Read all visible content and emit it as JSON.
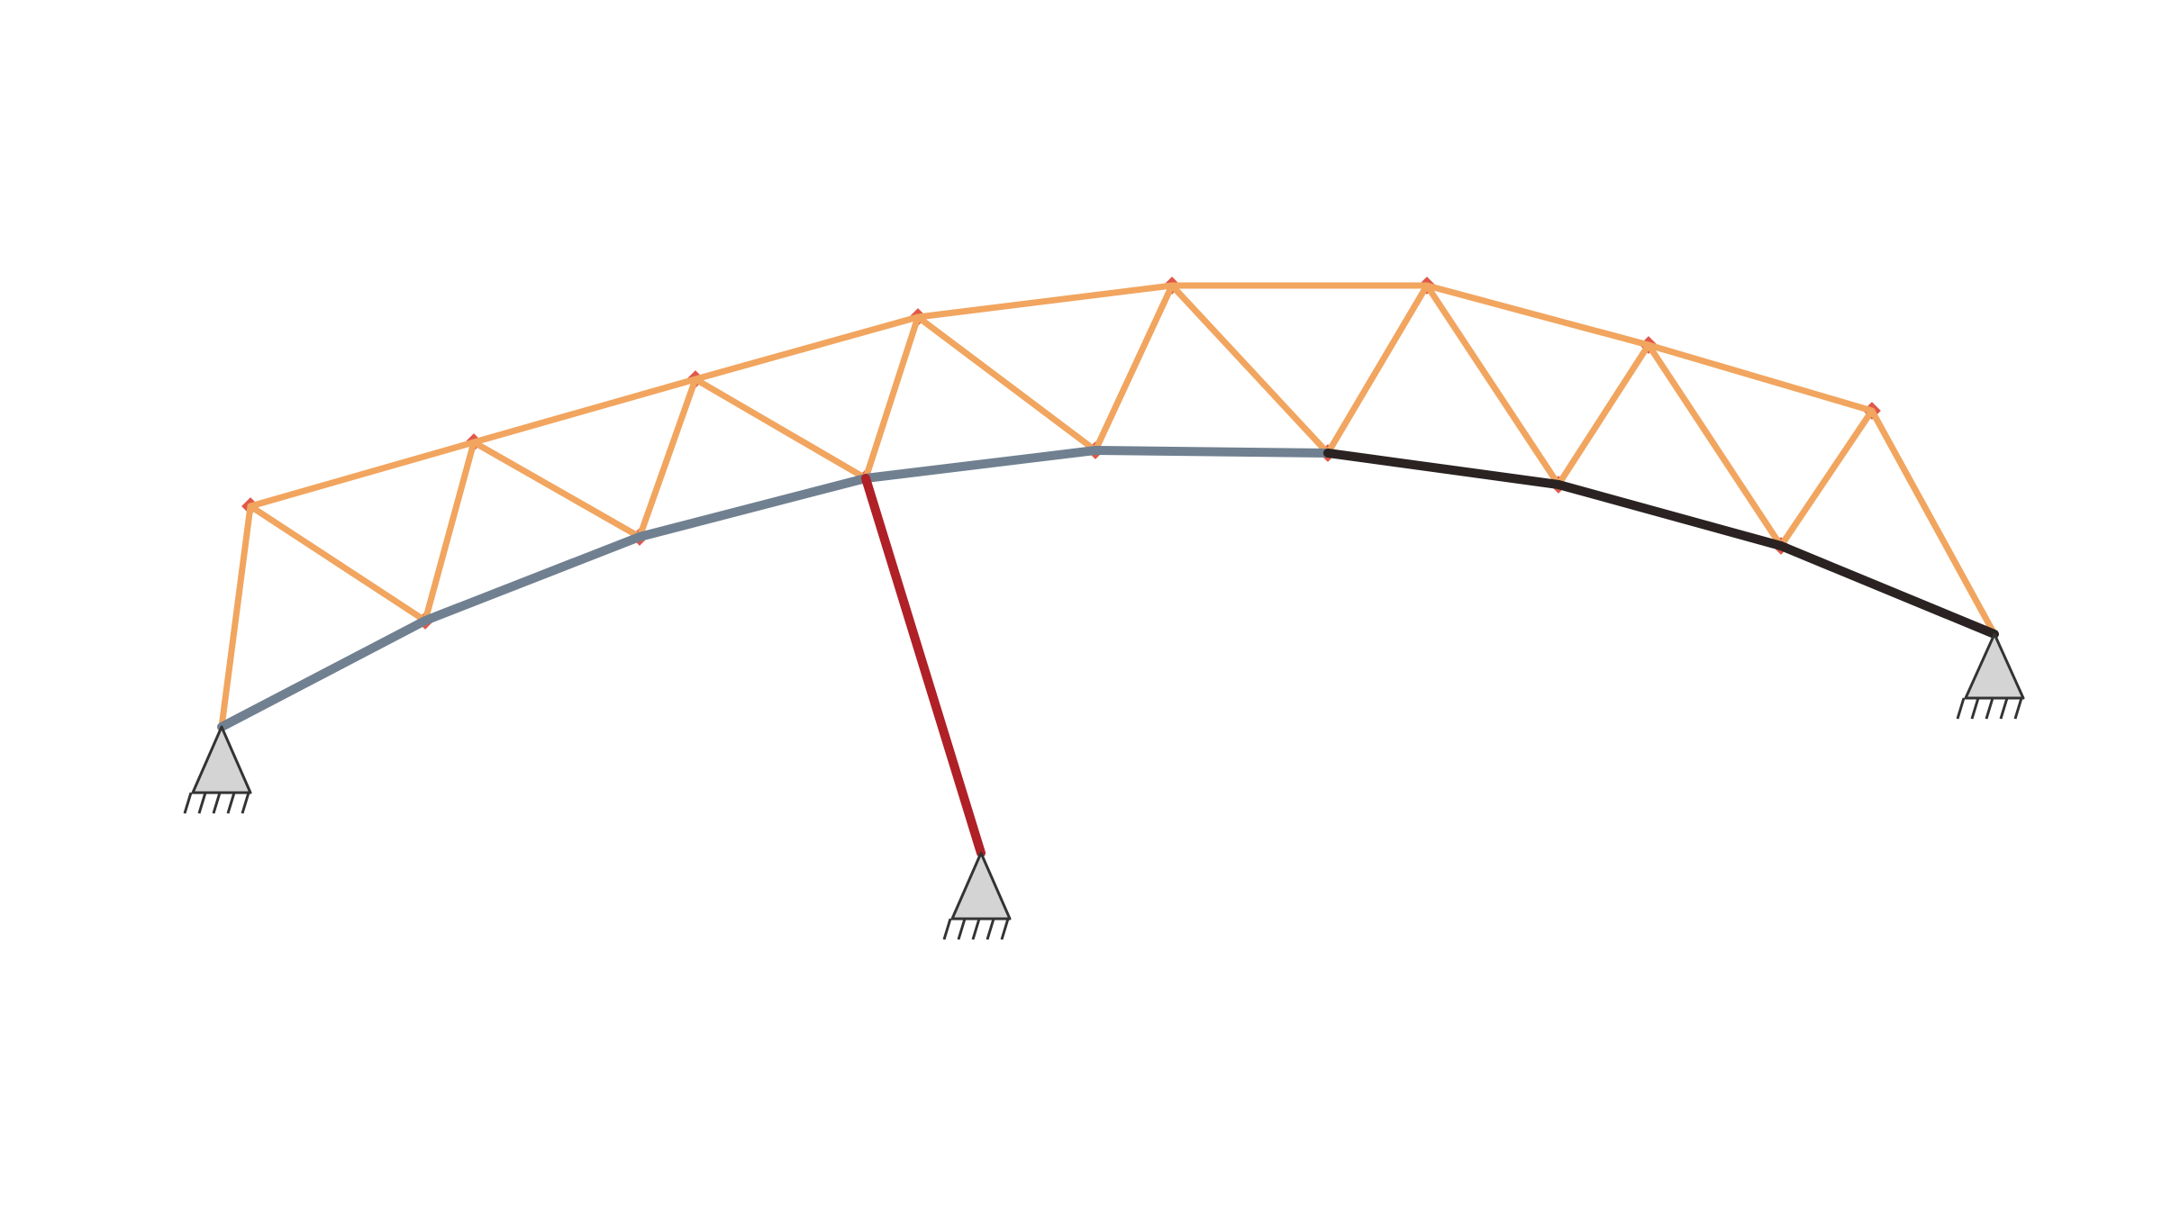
{
  "diagram": {
    "kind": "truss-structure",
    "colors": {
      "background": "#ffffff",
      "truss_member": "#f1a55f",
      "bottom_chord_left": "#708090",
      "bottom_chord_right": "#2a2321",
      "support_strut": "#b02027",
      "node_marker": "#e0584a",
      "support_fill": "#d4d4d4",
      "support_outline": "#333333"
    },
    "node_marker_icon": "diamond-node-marker",
    "support_icon": "pinned-support-icon",
    "supports": [
      "left-support",
      "middle-support",
      "right-support"
    ]
  }
}
